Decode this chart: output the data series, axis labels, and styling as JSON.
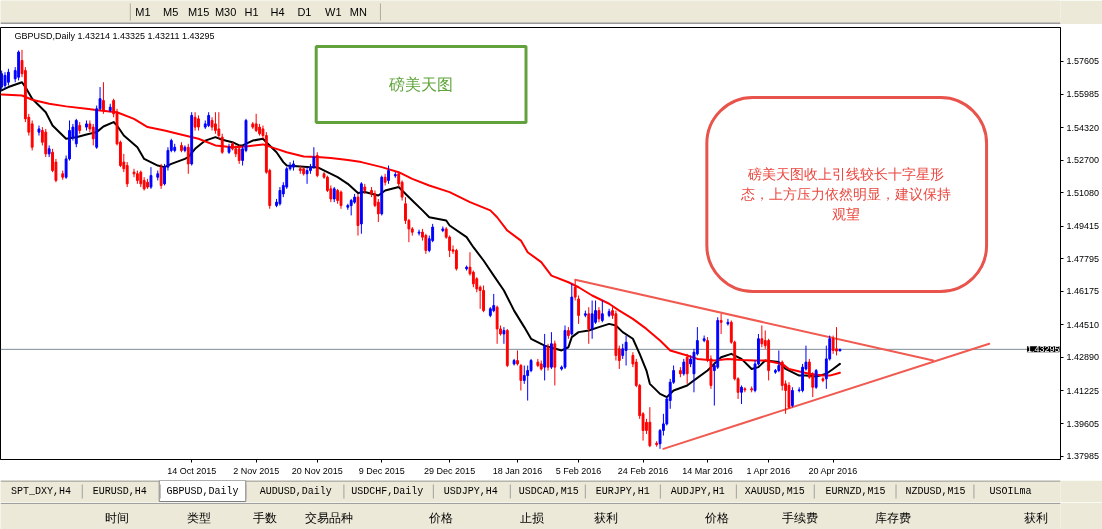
{
  "chart_data": {
    "type": "candlestick",
    "title": "GBPUSD,Daily 1.43214 1.43325 1.43211 1.43295",
    "x": [
      "2015-08-19",
      "2015-08-20",
      "2015-08-21",
      "2015-08-23",
      "2015-08-24",
      "2015-08-25",
      "2015-08-26",
      "2015-08-27",
      "2015-08-28",
      "2015-08-30",
      "2015-08-31",
      "2015-09-01",
      "2015-09-02",
      "2015-09-03",
      "2015-09-04",
      "2015-09-06",
      "2015-09-07",
      "2015-09-08",
      "2015-09-09",
      "2015-09-10",
      "2015-09-11",
      "2015-09-13",
      "2015-09-14",
      "2015-09-15",
      "2015-09-16",
      "2015-09-17",
      "2015-09-18",
      "2015-09-20",
      "2015-09-21",
      "2015-09-22",
      "2015-09-23",
      "2015-09-24",
      "2015-09-25",
      "2015-09-27",
      "2015-09-28",
      "2015-09-29",
      "2015-09-30",
      "2015-10-01",
      "2015-10-02",
      "2015-10-04",
      "2015-10-05",
      "2015-10-06",
      "2015-10-07",
      "2015-10-08",
      "2015-10-09",
      "2015-10-11",
      "2015-10-12",
      "2015-10-13",
      "2015-10-14",
      "2015-10-15",
      "2015-10-16",
      "2015-10-18",
      "2015-10-19",
      "2015-10-20",
      "2015-10-21",
      "2015-10-22",
      "2015-10-23",
      "2015-10-25",
      "2015-10-26",
      "2015-10-27",
      "2015-10-28",
      "2015-10-29",
      "2015-10-30",
      "2015-11-01",
      "2015-11-02",
      "2015-11-03",
      "2015-11-04",
      "2015-11-05",
      "2015-11-06",
      "2015-11-08",
      "2015-11-09",
      "2015-11-10",
      "2015-11-11",
      "2015-11-12",
      "2015-11-13",
      "2015-11-15",
      "2015-11-16",
      "2015-11-17",
      "2015-11-18",
      "2015-11-19",
      "2015-11-20",
      "2015-11-22",
      "2015-11-23",
      "2015-11-24",
      "2015-11-25",
      "2015-11-26",
      "2015-11-27",
      "2015-11-29",
      "2015-11-30",
      "2015-12-01",
      "2015-12-02",
      "2015-12-03",
      "2015-12-04",
      "2015-12-06",
      "2015-12-07",
      "2015-12-08",
      "2015-12-09",
      "2015-12-10",
      "2015-12-11",
      "2015-12-13",
      "2015-12-14",
      "2015-12-15",
      "2015-12-16",
      "2015-12-17",
      "2015-12-18",
      "2015-12-20",
      "2015-12-21",
      "2015-12-22",
      "2015-12-23",
      "2015-12-24",
      "2015-12-27",
      "2015-12-28",
      "2015-12-29",
      "2015-12-30",
      "2015-12-31",
      "2016-01-03",
      "2016-01-04",
      "2016-01-05",
      "2016-01-06",
      "2016-01-07",
      "2016-01-08",
      "2016-01-10",
      "2016-01-11",
      "2016-01-12",
      "2016-01-13",
      "2016-01-14",
      "2016-01-15",
      "2016-01-17",
      "2016-01-18",
      "2016-01-19",
      "2016-01-20",
      "2016-01-21",
      "2016-01-22",
      "2016-01-24",
      "2016-01-25",
      "2016-01-26",
      "2016-01-27",
      "2016-01-28",
      "2016-01-29",
      "2016-01-31",
      "2016-02-01",
      "2016-02-02",
      "2016-02-03",
      "2016-02-04",
      "2016-02-05",
      "2016-02-07",
      "2016-02-08",
      "2016-02-09",
      "2016-02-10",
      "2016-02-11",
      "2016-02-12",
      "2016-02-14",
      "2016-02-15",
      "2016-02-16",
      "2016-02-17",
      "2016-02-18",
      "2016-02-19",
      "2016-02-21",
      "2016-02-22",
      "2016-02-23",
      "2016-02-24",
      "2016-02-25",
      "2016-02-26",
      "2016-02-28",
      "2016-02-29",
      "2016-03-01",
      "2016-03-02",
      "2016-03-03",
      "2016-03-04",
      "2016-03-06",
      "2016-03-07",
      "2016-03-08",
      "2016-03-09",
      "2016-03-10",
      "2016-03-11",
      "2016-03-13",
      "2016-03-14",
      "2016-03-15",
      "2016-03-16",
      "2016-03-17",
      "2016-03-18",
      "2016-03-20",
      "2016-03-21",
      "2016-03-22",
      "2016-03-23",
      "2016-03-24",
      "2016-03-25",
      "2016-03-27",
      "2016-03-28",
      "2016-03-29",
      "2016-03-30",
      "2016-03-31",
      "2016-04-01",
      "2016-04-03",
      "2016-04-04",
      "2016-04-05",
      "2016-04-06",
      "2016-04-07",
      "2016-04-08",
      "2016-04-10",
      "2016-04-11",
      "2016-04-12",
      "2016-04-13",
      "2016-04-14",
      "2016-04-15",
      "2016-04-17",
      "2016-04-18",
      "2016-04-19",
      "2016-04-20",
      "2016-04-21",
      "2016-04-22"
    ],
    "ohlc": [
      [
        1.5633,
        1.5715,
        1.5616,
        1.5699
      ],
      [
        1.5641,
        1.5707,
        1.5624,
        1.5691
      ],
      [
        1.5657,
        1.5724,
        1.5641,
        1.5707
      ],
      [
        1.5674,
        1.5732,
        1.5657,
        1.5715
      ],
      [
        1.5682,
        1.5815,
        1.5666,
        1.5807
      ],
      [
        1.5765,
        1.5818,
        1.5682,
        1.5699
      ],
      [
        1.5715,
        1.5732,
        1.5459,
        1.5475
      ],
      [
        1.5483,
        1.55,
        1.5392,
        1.5409
      ],
      [
        1.545,
        1.5467,
        1.5318,
        1.5334
      ],
      [
        1.5409,
        1.5442,
        1.5392,
        1.5425
      ],
      [
        1.5417,
        1.5434,
        1.5343,
        1.5359
      ],
      [
        1.5409,
        1.5425,
        1.5285,
        1.5301
      ],
      [
        1.5301,
        1.5343,
        1.5285,
        1.5326
      ],
      [
        1.5309,
        1.5326,
        1.521,
        1.5218
      ],
      [
        1.526,
        1.5276,
        1.516,
        1.5169
      ],
      [
        1.5202,
        1.5218,
        1.5172,
        1.5185
      ],
      [
        1.5185,
        1.5293,
        1.5177,
        1.5276
      ],
      [
        1.5276,
        1.5467,
        1.5268,
        1.5417
      ],
      [
        1.5384,
        1.545,
        1.5367,
        1.5434
      ],
      [
        1.5351,
        1.5475,
        1.5334,
        1.5467
      ],
      [
        1.5442,
        1.5459,
        1.5401,
        1.5417
      ],
      [
        1.5434,
        1.5467,
        1.5417,
        1.545
      ],
      [
        1.545,
        1.5467,
        1.5409,
        1.5425
      ],
      [
        1.5434,
        1.545,
        1.5343,
        1.5376
      ],
      [
        1.5334,
        1.5541,
        1.5326,
        1.5525
      ],
      [
        1.5525,
        1.5633,
        1.5517,
        1.5575
      ],
      [
        1.5566,
        1.5657,
        1.55,
        1.5517
      ],
      [
        1.5517,
        1.555,
        1.5508,
        1.5533
      ],
      [
        1.5566,
        1.5575,
        1.5483,
        1.55
      ],
      [
        1.5508,
        1.5525,
        1.5343,
        1.5351
      ],
      [
        1.5359,
        1.5367,
        1.5235,
        1.5243
      ],
      [
        1.526,
        1.5301,
        1.521,
        1.5227
      ],
      [
        1.5243,
        1.526,
        1.5136,
        1.5152
      ],
      [
        1.521,
        1.5227,
        1.5185,
        1.5202
      ],
      [
        1.5202,
        1.5218,
        1.5152,
        1.5169
      ],
      [
        1.521,
        1.5218,
        1.5136,
        1.5152
      ],
      [
        1.5169,
        1.5185,
        1.5119,
        1.5127
      ],
      [
        1.516,
        1.5177,
        1.5127,
        1.5136
      ],
      [
        1.5136,
        1.5235,
        1.5127,
        1.5193
      ],
      [
        1.5185,
        1.5218,
        1.5169,
        1.5202
      ],
      [
        1.5235,
        1.5251,
        1.5127,
        1.5144
      ],
      [
        1.5152,
        1.5251,
        1.5144,
        1.5235
      ],
      [
        1.5235,
        1.5334,
        1.5218,
        1.5318
      ],
      [
        1.5318,
        1.5376,
        1.5309,
        1.5367
      ],
      [
        1.5318,
        1.5351,
        1.5309,
        1.5334
      ],
      [
        1.5343,
        1.5359,
        1.5309,
        1.5318
      ],
      [
        1.5318,
        1.5343,
        1.5309,
        1.5334
      ],
      [
        1.5334,
        1.5351,
        1.5202,
        1.5251
      ],
      [
        1.5251,
        1.5508,
        1.5243,
        1.5492
      ],
      [
        1.5483,
        1.5508,
        1.5417,
        1.5434
      ],
      [
        1.5475,
        1.5492,
        1.5417,
        1.5434
      ],
      [
        1.5434,
        1.5467,
        1.5425,
        1.545
      ],
      [
        1.5442,
        1.5508,
        1.5434,
        1.5492
      ],
      [
        1.5467,
        1.5483,
        1.5417,
        1.5434
      ],
      [
        1.545,
        1.5508,
        1.5401,
        1.5417
      ],
      [
        1.5425,
        1.5508,
        1.5376,
        1.5392
      ],
      [
        1.5384,
        1.5401,
        1.5301,
        1.5309
      ],
      [
        1.5309,
        1.5351,
        1.5301,
        1.5334
      ],
      [
        1.5351,
        1.5359,
        1.5318,
        1.5326
      ],
      [
        1.5326,
        1.5343,
        1.5285,
        1.5301
      ],
      [
        1.5326,
        1.5343,
        1.5251,
        1.5268
      ],
      [
        1.5268,
        1.5343,
        1.5243,
        1.5326
      ],
      [
        1.5318,
        1.5475,
        1.5309,
        1.5467
      ],
      [
        1.545,
        1.5459,
        1.5425,
        1.5434
      ],
      [
        1.545,
        1.55,
        1.5409,
        1.5417
      ],
      [
        1.5434,
        1.545,
        1.5392,
        1.5401
      ],
      [
        1.5425,
        1.5442,
        1.5376,
        1.5392
      ],
      [
        1.5392,
        1.5409,
        1.5202,
        1.521
      ],
      [
        1.5218,
        1.5227,
        1.5028,
        1.5044
      ],
      [
        1.5044,
        1.5077,
        1.5036,
        1.5061
      ],
      [
        1.5053,
        1.5136,
        1.5044,
        1.5119
      ],
      [
        1.5102,
        1.516,
        1.5086,
        1.5144
      ],
      [
        1.5136,
        1.5235,
        1.5127,
        1.5227
      ],
      [
        1.5227,
        1.526,
        1.5218,
        1.5243
      ],
      [
        1.5235,
        1.5268,
        1.5218,
        1.5251
      ],
      [
        1.5227,
        1.5243,
        1.5202,
        1.5218
      ],
      [
        1.5227,
        1.5235,
        1.5193,
        1.5202
      ],
      [
        1.5202,
        1.5235,
        1.5152,
        1.5218
      ],
      [
        1.5218,
        1.5251,
        1.5202,
        1.5235
      ],
      [
        1.5235,
        1.5334,
        1.5227,
        1.5285
      ],
      [
        1.5293,
        1.5309,
        1.5185,
        1.5193
      ],
      [
        1.5202,
        1.521,
        1.5177,
        1.5185
      ],
      [
        1.5185,
        1.5193,
        1.5111,
        1.5119
      ],
      [
        1.5127,
        1.5144,
        1.5061,
        1.5077
      ],
      [
        1.5077,
        1.5136,
        1.5061,
        1.5127
      ],
      [
        1.5119,
        1.5127,
        1.5053,
        1.5069
      ],
      [
        1.5111,
        1.5119,
        1.5028,
        1.5044
      ],
      [
        1.5036,
        1.5053,
        1.5023,
        1.5044
      ],
      [
        1.5044,
        1.5077,
        1.4995,
        1.5069
      ],
      [
        1.5061,
        1.5102,
        1.5053,
        1.5086
      ],
      [
        1.5086,
        1.5102,
        1.4895,
        1.4945
      ],
      [
        1.4953,
        1.516,
        1.4904,
        1.5152
      ],
      [
        1.5136,
        1.5152,
        1.5102,
        1.5119
      ],
      [
        1.5119,
        1.5136,
        1.5086,
        1.5102
      ],
      [
        1.5102,
        1.5119,
        1.5036,
        1.5044
      ],
      [
        1.5061,
        1.5077,
        1.4962,
        1.5003
      ],
      [
        1.5003,
        1.5193,
        1.4995,
        1.5185
      ],
      [
        1.5185,
        1.5202,
        1.5144,
        1.516
      ],
      [
        1.5169,
        1.5243,
        1.5152,
        1.5218
      ],
      [
        1.5192,
        1.521,
        1.5182,
        1.5198
      ],
      [
        1.5202,
        1.521,
        1.5136,
        1.5152
      ],
      [
        1.516,
        1.5169,
        1.5069,
        1.5086
      ],
      [
        1.5053,
        1.5086,
        1.4953,
        1.497
      ],
      [
        1.497,
        1.4978,
        1.4862,
        1.4928
      ],
      [
        1.4928,
        1.4937,
        1.4895,
        1.4912
      ],
      [
        1.4907,
        1.4924,
        1.4895,
        1.4912
      ],
      [
        1.4912,
        1.4928,
        1.487,
        1.4887
      ],
      [
        1.4895,
        1.4904,
        1.4804,
        1.4821
      ],
      [
        1.4821,
        1.4895,
        1.4812,
        1.4879
      ],
      [
        1.487,
        1.4953,
        1.4862,
        1.4937
      ],
      [
        1.492,
        1.494,
        1.4912,
        1.4928
      ],
      [
        1.4928,
        1.4937,
        1.4879,
        1.4887
      ],
      [
        1.4887,
        1.4895,
        1.4788,
        1.4821
      ],
      [
        1.4824,
        1.4846,
        1.4804,
        1.4817
      ],
      [
        1.4821,
        1.4829,
        1.4721,
        1.473
      ],
      [
        1.473,
        1.4746,
        1.4721,
        1.4738
      ],
      [
        1.4738,
        1.4812,
        1.4696,
        1.4705
      ],
      [
        1.4713,
        1.4721,
        1.4638,
        1.4655
      ],
      [
        1.468,
        1.4688,
        1.4613,
        1.463
      ],
      [
        1.4638,
        1.4647,
        1.4531,
        1.4622
      ],
      [
        1.4622,
        1.4647,
        1.4514,
        1.4522
      ],
      [
        1.4498,
        1.4539,
        1.4489,
        1.4531
      ],
      [
        1.4522,
        1.4605,
        1.4514,
        1.4547
      ],
      [
        1.4539,
        1.4547,
        1.4357,
        1.4431
      ],
      [
        1.4431,
        1.4448,
        1.4398,
        1.4406
      ],
      [
        1.4406,
        1.444,
        1.4357,
        1.4423
      ],
      [
        1.4423,
        1.4431,
        1.4241,
        1.4249
      ],
      [
        1.4257,
        1.4282,
        1.4249,
        1.4274
      ],
      [
        1.4274,
        1.4324,
        1.4249,
        1.4257
      ],
      [
        1.4249,
        1.4257,
        1.4125,
        1.4175
      ],
      [
        1.4175,
        1.4249,
        1.4158,
        1.4199
      ],
      [
        1.4199,
        1.4249,
        1.4075,
        1.4224
      ],
      [
        1.4224,
        1.4282,
        1.4216,
        1.4274
      ],
      [
        1.4266,
        1.4282,
        1.4241,
        1.4249
      ],
      [
        1.4257,
        1.4274,
        1.4224,
        1.4232
      ],
      [
        1.4241,
        1.4406,
        1.4175,
        1.4348
      ],
      [
        1.434,
        1.4357,
        1.4224,
        1.4241
      ],
      [
        1.4241,
        1.4415,
        1.4232,
        1.4357
      ],
      [
        1.4357,
        1.4373,
        1.415,
        1.4241
      ],
      [
        1.4232,
        1.4249,
        1.4224,
        1.4241
      ],
      [
        1.4241,
        1.4448,
        1.4232,
        1.4423
      ],
      [
        1.4423,
        1.444,
        1.4382,
        1.4398
      ],
      [
        1.4406,
        1.4655,
        1.4398,
        1.4589
      ],
      [
        1.4638,
        1.4672,
        1.4572,
        1.4589
      ],
      [
        1.458,
        1.4597,
        1.4456,
        1.4498
      ],
      [
        1.4499,
        1.4522,
        1.4489,
        1.4506
      ],
      [
        1.4506,
        1.4539,
        1.4357,
        1.4431
      ],
      [
        1.4431,
        1.4572,
        1.4382,
        1.4506
      ],
      [
        1.4464,
        1.4572,
        1.4456,
        1.4522
      ],
      [
        1.4522,
        1.4539,
        1.4464,
        1.4481
      ],
      [
        1.4473,
        1.4572,
        1.4464,
        1.4506
      ],
      [
        1.4498,
        1.4531,
        1.4489,
        1.4517
      ],
      [
        1.4522,
        1.4539,
        1.4481,
        1.4498
      ],
      [
        1.4506,
        1.4522,
        1.4274,
        1.4299
      ],
      [
        1.4332,
        1.4348,
        1.4232,
        1.4274
      ],
      [
        1.4299,
        1.4357,
        1.4282,
        1.4332
      ],
      [
        1.4324,
        1.4398,
        1.4249,
        1.4365
      ],
      [
        1.4299,
        1.4315,
        1.4241,
        1.4257
      ],
      [
        1.4266,
        1.4282,
        1.4141,
        1.415
      ],
      [
        1.415,
        1.4158,
        1.3984,
        1.4
      ],
      [
        1.4009,
        1.4017,
        1.3876,
        1.3926
      ],
      [
        1.3967,
        1.3984,
        1.3909,
        1.3926
      ],
      [
        1.3967,
        1.4042,
        1.3843,
        1.3851
      ],
      [
        1.3863,
        1.3873,
        1.3846,
        1.3856
      ],
      [
        1.386,
        1.3934,
        1.3835,
        1.3926
      ],
      [
        1.3926,
        1.4009,
        1.3901,
        1.3959
      ],
      [
        1.3959,
        1.4092,
        1.3951,
        1.4083
      ],
      [
        1.4075,
        1.4183,
        1.4034,
        1.4166
      ],
      [
        1.4166,
        1.4249,
        1.4158,
        1.4224
      ],
      [
        1.4224,
        1.4241,
        1.4191,
        1.4208
      ],
      [
        1.4208,
        1.4282,
        1.4199,
        1.4266
      ],
      [
        1.429,
        1.4307,
        1.4158,
        1.4208
      ],
      [
        1.4257,
        1.4299,
        1.4241,
        1.4282
      ],
      [
        1.4208,
        1.4332,
        1.4116,
        1.4315
      ],
      [
        1.4307,
        1.444,
        1.4299,
        1.4373
      ],
      [
        1.4373,
        1.4398,
        1.4365,
        1.4382
      ],
      [
        1.4373,
        1.439,
        1.4266,
        1.4282
      ],
      [
        1.4282,
        1.4299,
        1.4133,
        1.415
      ],
      [
        1.4224,
        1.4266,
        1.405,
        1.4249
      ],
      [
        1.4241,
        1.4489,
        1.4232,
        1.4473
      ],
      [
        1.4473,
        1.4506,
        1.4406,
        1.4464
      ],
      [
        1.4456,
        1.4481,
        1.4448,
        1.4464
      ],
      [
        1.4464,
        1.4473,
        1.4357,
        1.4365
      ],
      [
        1.4365,
        1.4373,
        1.4175,
        1.4183
      ],
      [
        1.4183,
        1.4191,
        1.4083,
        1.4116
      ],
      [
        1.4116,
        1.415,
        1.4058,
        1.4141
      ],
      [
        1.4133,
        1.4141,
        1.4116,
        1.4128
      ],
      [
        1.4133,
        1.4145,
        1.4116,
        1.4128
      ],
      [
        1.4125,
        1.4274,
        1.4116,
        1.4257
      ],
      [
        1.4257,
        1.4406,
        1.4249,
        1.4382
      ],
      [
        1.4382,
        1.4448,
        1.434,
        1.4357
      ],
      [
        1.4373,
        1.4423,
        1.4332,
        1.4348
      ],
      [
        1.4373,
        1.4382,
        1.4175,
        1.4224
      ],
      [
        1.4216,
        1.4232,
        1.4208,
        1.4224
      ],
      [
        1.4224,
        1.4324,
        1.4216,
        1.4249
      ],
      [
        1.4266,
        1.4274,
        1.4125,
        1.415
      ],
      [
        1.4158,
        1.4175,
        1.4009,
        1.4125
      ],
      [
        1.415,
        1.4166,
        1.4034,
        1.4042
      ],
      [
        1.405,
        1.4141,
        1.4042,
        1.4125
      ],
      [
        1.4125,
        1.4141,
        1.4116,
        1.4128
      ],
      [
        1.4125,
        1.4257,
        1.4116,
        1.4241
      ],
      [
        1.4232,
        1.4348,
        1.4224,
        1.4266
      ],
      [
        1.4266,
        1.4282,
        1.4183,
        1.4191
      ],
      [
        1.4199,
        1.4216,
        1.4092,
        1.4141
      ],
      [
        1.4141,
        1.4232,
        1.4133,
        1.4224
      ],
      [
        1.4183,
        1.4191,
        1.4166,
        1.4175
      ],
      [
        1.4183,
        1.4348,
        1.4133,
        1.4282
      ],
      [
        1.4282,
        1.4398,
        1.4274,
        1.4382
      ],
      [
        1.4382,
        1.4398,
        1.4307,
        1.4324
      ],
      [
        1.4332,
        1.444,
        1.4299,
        1.4321
      ],
      [
        1.43214,
        1.43325,
        1.43211,
        1.43295
      ]
    ],
    "colors": [
      "#0000ff",
      "#0000ff",
      "#0000ff",
      "#0000ff",
      "#0000ff",
      "#ff0000",
      "#ff0000",
      "#ff0000",
      "#ff0000",
      "#0000ff",
      "#ff0000",
      "#ff0000",
      "#0000ff",
      "#ff0000",
      "#ff0000",
      "#ff0000",
      "#0000ff",
      "#0000ff",
      "#0000ff",
      "#0000ff",
      "#ff0000",
      "#0000ff",
      "#ff0000",
      "#ff0000",
      "#0000ff",
      "#0000ff",
      "#ff0000",
      "#0000ff",
      "#ff0000",
      "#ff0000",
      "#ff0000",
      "#ff0000",
      "#ff0000",
      "#ff0000",
      "#ff0000",
      "#ff0000",
      "#ff0000",
      "#ff0000",
      "#0000ff",
      "#0000ff",
      "#ff0000",
      "#0000ff",
      "#0000ff",
      "#0000ff",
      "#0000ff",
      "#ff0000",
      "#0000ff",
      "#ff0000",
      "#0000ff",
      "#ff0000",
      "#ff0000",
      "#0000ff",
      "#0000ff",
      "#ff0000",
      "#ff0000",
      "#ff0000",
      "#ff0000",
      "#0000ff",
      "#ff0000",
      "#ff0000",
      "#ff0000",
      "#0000ff",
      "#0000ff",
      "#ff0000",
      "#ff0000",
      "#ff0000",
      "#ff0000",
      "#ff0000",
      "#ff0000",
      "#0000ff",
      "#0000ff",
      "#0000ff",
      "#0000ff",
      "#0000ff",
      "#0000ff",
      "#ff0000",
      "#ff0000",
      "#0000ff",
      "#0000ff",
      "#0000ff",
      "#ff0000",
      "#ff0000",
      "#ff0000",
      "#ff0000",
      "#0000ff",
      "#ff0000",
      "#ff0000",
      "#0000ff",
      "#0000ff",
      "#0000ff",
      "#ff0000",
      "#0000ff",
      "#ff0000",
      "#ff0000",
      "#ff0000",
      "#ff0000",
      "#0000ff",
      "#ff0000",
      "#0000ff",
      "#0000ff",
      "#ff0000",
      "#ff0000",
      "#ff0000",
      "#ff0000",
      "#ff0000",
      "#0000ff",
      "#ff0000",
      "#ff0000",
      "#0000ff",
      "#0000ff",
      "#0000ff",
      "#ff0000",
      "#ff0000",
      "#ff0000",
      "#ff0000",
      "#0000ff",
      "#ff0000",
      "#ff0000",
      "#ff0000",
      "#ff0000",
      "#ff0000",
      "#0000ff",
      "#0000ff",
      "#ff0000",
      "#ff0000",
      "#0000ff",
      "#ff0000",
      "#0000ff",
      "#ff0000",
      "#ff0000",
      "#0000ff",
      "#0000ff",
      "#0000ff",
      "#ff0000",
      "#ff0000",
      "#0000ff",
      "#ff0000",
      "#0000ff",
      "#ff0000",
      "#0000ff",
      "#0000ff",
      "#ff0000",
      "#0000ff",
      "#ff0000",
      "#ff0000",
      "#0000ff",
      "#ff0000",
      "#0000ff",
      "#0000ff",
      "#ff0000",
      "#0000ff",
      "#0000ff",
      "#ff0000",
      "#ff0000",
      "#ff0000",
      "#0000ff",
      "#0000ff",
      "#ff0000",
      "#ff0000",
      "#ff0000",
      "#ff0000",
      "#ff0000",
      "#ff0000",
      "#ff0000",
      "#0000ff",
      "#0000ff",
      "#0000ff",
      "#0000ff",
      "#0000ff",
      "#ff0000",
      "#0000ff",
      "#ff0000",
      "#0000ff",
      "#0000ff",
      "#0000ff",
      "#0000ff",
      "#ff0000",
      "#ff0000",
      "#0000ff",
      "#0000ff",
      "#ff0000",
      "#0000ff",
      "#ff0000",
      "#ff0000",
      "#ff0000",
      "#0000ff",
      "#ff0000",
      "#ff0000",
      "#0000ff",
      "#0000ff",
      "#ff0000",
      "#ff0000",
      "#ff0000",
      "#0000ff",
      "#0000ff",
      "#ff0000",
      "#ff0000",
      "#ff0000",
      "#0000ff",
      "#0000ff",
      "#0000ff",
      "#0000ff",
      "#ff0000",
      "#ff0000",
      "#0000ff",
      "#ff0000",
      "#0000ff",
      "#0000ff",
      "#ff0000",
      "#ff0000",
      "#0000ff"
    ],
    "series": [
      {
        "type": "line",
        "color": "#000000",
        "x": [
          "2015-08-19",
          "2015-08-21",
          "2015-08-25",
          "2015-08-26",
          "2015-08-28",
          "2015-09-01",
          "2015-09-03",
          "2015-09-06",
          "2015-09-07",
          "2015-09-10",
          "2015-09-13",
          "2015-09-16",
          "2015-09-18",
          "2015-09-21",
          "2015-09-22",
          "2015-09-24",
          "2015-09-28",
          "2015-09-30",
          "2015-10-04",
          "2015-10-06",
          "2015-10-08",
          "2015-10-12",
          "2015-10-13",
          "2015-10-15",
          "2015-10-18",
          "2015-10-21",
          "2015-10-23",
          "2015-10-26",
          "2015-10-28",
          "2015-10-29",
          "2015-11-01",
          "2015-11-04",
          "2015-11-05",
          "2015-11-08",
          "2015-11-10",
          "2015-11-11",
          "2015-11-15",
          "2015-11-18",
          "2015-11-20",
          "2015-11-23",
          "2015-11-26",
          "2015-11-29",
          "2015-12-02",
          "2015-12-04",
          "2015-12-08",
          "2015-12-10",
          "2015-12-14",
          "2015-12-15",
          "2015-12-18",
          "2015-12-21",
          "2015-12-23",
          "2015-12-28",
          "2015-12-29",
          "2016-01-03",
          "2016-01-05",
          "2016-01-08",
          "2016-01-11",
          "2016-01-14",
          "2016-01-17",
          "2016-01-20",
          "2016-01-22",
          "2016-01-26",
          "2016-01-31",
          "2016-02-02",
          "2016-02-03",
          "2016-02-05",
          "2016-02-08",
          "2016-02-11",
          "2016-02-14",
          "2016-02-16",
          "2016-02-18",
          "2016-02-21",
          "2016-02-23",
          "2016-02-25",
          "2016-02-26",
          "2016-02-29",
          "2016-03-02",
          "2016-03-04",
          "2016-03-08",
          "2016-03-10",
          "2016-03-14",
          "2016-03-15",
          "2016-03-18",
          "2016-03-21",
          "2016-03-24",
          "2016-03-27",
          "2016-03-29",
          "2016-03-31",
          "2016-04-04",
          "2016-04-06",
          "2016-04-10",
          "2016-04-12",
          "2016-04-15",
          "2016-04-18",
          "2016-04-20",
          "2016-04-22"
        ],
        "values": [
          1.5616,
          1.5633,
          1.5657,
          1.5633,
          1.5575,
          1.5508,
          1.5442,
          1.5392,
          1.5376,
          1.5384,
          1.5397,
          1.5409,
          1.5437,
          1.5459,
          1.5442,
          1.5392,
          1.5334,
          1.5276,
          1.5243,
          1.5235,
          1.5251,
          1.5276,
          1.5285,
          1.5326,
          1.5367,
          1.5384,
          1.5371,
          1.5359,
          1.5343,
          1.5343,
          1.5367,
          1.5376,
          1.5359,
          1.5309,
          1.526,
          1.5243,
          1.5238,
          1.5235,
          1.5235,
          1.521,
          1.5185,
          1.5152,
          1.5106,
          1.5111,
          1.5094,
          1.5119,
          1.5136,
          1.5119,
          1.5069,
          1.502,
          1.4986,
          1.497,
          1.4945,
          1.4887,
          1.4837,
          1.4771,
          1.4696,
          1.4622,
          1.4522,
          1.444,
          1.4382,
          1.4348,
          1.4324,
          1.434,
          1.439,
          1.4415,
          1.4423,
          1.444,
          1.4456,
          1.4448,
          1.4415,
          1.4382,
          1.4307,
          1.4224,
          1.4158,
          1.4108,
          1.4092,
          1.4125,
          1.415,
          1.4175,
          1.4224,
          1.4241,
          1.429,
          1.4307,
          1.4282,
          1.4232,
          1.4241,
          1.4274,
          1.4266,
          1.4232,
          1.4199,
          1.4199,
          1.4194,
          1.4208,
          1.4232,
          1.4257
        ]
      },
      {
        "type": "line",
        "color": "#ff0000",
        "x": [
          "2015-08-19",
          "2015-08-25",
          "2015-08-28",
          "2015-09-02",
          "2015-09-07",
          "2015-09-13",
          "2015-09-17",
          "2015-09-22",
          "2015-09-27",
          "2015-10-01",
          "2015-10-06",
          "2015-10-12",
          "2015-10-16",
          "2015-10-21",
          "2015-10-26",
          "2015-10-30",
          "2015-11-04",
          "2015-11-08",
          "2015-11-11",
          "2015-11-16",
          "2015-11-20",
          "2015-11-24",
          "2015-11-29",
          "2015-12-03",
          "2015-12-09",
          "2015-12-14",
          "2015-12-18",
          "2015-12-23",
          "2015-12-29",
          "2016-01-04",
          "2016-01-10",
          "2016-01-12",
          "2016-01-15",
          "2016-01-19",
          "2016-01-21",
          "2016-01-25",
          "2016-01-28",
          "2016-02-02",
          "2016-02-05",
          "2016-02-09",
          "2016-02-14",
          "2016-02-17",
          "2016-02-21",
          "2016-02-25",
          "2016-02-29",
          "2016-03-03",
          "2016-03-08",
          "2016-03-11",
          "2016-03-16",
          "2016-03-20",
          "2016-03-24",
          "2016-03-28",
          "2016-03-31",
          "2016-04-05",
          "2016-04-07",
          "2016-04-11",
          "2016-04-13",
          "2016-04-17",
          "2016-04-19",
          "2016-04-21",
          "2016-04-22"
        ],
        "values": [
          1.5596,
          1.5591,
          1.557,
          1.555,
          1.5537,
          1.5525,
          1.5517,
          1.5508,
          1.5475,
          1.5434,
          1.5417,
          1.5392,
          1.5376,
          1.5343,
          1.5334,
          1.5338,
          1.5348,
          1.5326,
          1.5309,
          1.5288,
          1.5285,
          1.5281,
          1.5271,
          1.526,
          1.5235,
          1.521,
          1.5177,
          1.5144,
          1.5111,
          1.5061,
          1.502,
          1.4986,
          1.492,
          1.487,
          1.4812,
          1.4763,
          1.4696,
          1.4663,
          1.4638,
          1.4597,
          1.4556,
          1.4522,
          1.4481,
          1.4431,
          1.4373,
          1.4324,
          1.4299,
          1.4282,
          1.4274,
          1.4282,
          1.4277,
          1.4274,
          1.4274,
          1.4257,
          1.4232,
          1.4216,
          1.4208,
          1.4199,
          1.4199,
          1.4208,
          1.4213
        ]
      },
      {
        "type": "line",
        "color": "#f05a50",
        "x": [
          "2016-02-04",
          "2016-05-19T12:00"
        ],
        "values": [
          1.4675,
          1.4274
        ]
      },
      {
        "type": "line",
        "color": "#f05a50",
        "x": [
          "2016-03-01",
          "2016-06-05"
        ],
        "values": [
          1.3835,
          1.4357
        ]
      }
    ],
    "xlim": [
      "2015-08-18T16:00",
      "2016-06-26"
    ],
    "ylim": [
      1.3782,
      1.5929
    ],
    "xticks": [
      {
        "value": "2015-10-14",
        "label": "14 Oct 2015"
      },
      {
        "value": "2015-11-02",
        "label": "2 Nov 2015"
      },
      {
        "value": "2015-11-20",
        "label": "20 Nov 2015"
      },
      {
        "value": "2015-12-09",
        "label": "9 Dec 2015"
      },
      {
        "value": "2015-12-29",
        "label": "29 Dec 2015"
      },
      {
        "value": "2016-01-18",
        "label": "18 Jan 2016"
      },
      {
        "value": "2016-02-05",
        "label": "5 Feb 2016"
      },
      {
        "value": "2016-02-24",
        "label": "24 Feb 2016"
      },
      {
        "value": "2016-03-14",
        "label": "14 Mar 2016"
      },
      {
        "value": "2016-04-01",
        "label": "1 Apr 2016"
      },
      {
        "value": "2016-04-20",
        "label": "20 Apr 2016"
      }
    ],
    "yticks": [
      1.57605,
      1.55985,
      {
        "value": 1.5432,
        "label": "1.54320"
      },
      {
        "value": 1.527,
        "label": "1.52700"
      },
      {
        "value": 1.5108,
        "label": "1.51080"
      },
      1.49415,
      1.47795,
      1.46175,
      {
        "value": 1.4451,
        "label": "1.44510"
      },
      {
        "value": 1.4289,
        "label": "1.42890"
      },
      1.41225,
      1.39605,
      1.37985
    ],
    "ref_lines": [
      {
        "axis": "y",
        "value": 1.43295,
        "label": "1.43295",
        "color": "#7f8c98"
      }
    ],
    "annotations": [
      "磅美天图",
      "磅美天图收上引线较长十字星形态，上方压力依然明显，建议保持观望",
      "M1",
      "M5",
      "M15",
      "M30",
      "H1",
      "H4",
      "D1",
      "W1",
      "MN",
      "SPT_DXY,H4",
      "EURUSD,H4",
      "GBPUSD,Daily",
      "AUDUSD,Daily",
      "USDCHF,Daily",
      "USDJPY,H4",
      "USDCAD,M15",
      "EURJPY,H1",
      "AUDJPY,H1",
      "XAUUSD,M15",
      "EURNZD,M15",
      "NZDUSD,M15",
      "USOILma",
      "时间",
      "类型",
      "手数",
      "交易品种",
      "价格",
      "止损",
      "获利",
      "价格",
      "手续费",
      "库存费",
      "获利"
    ]
  }
}
